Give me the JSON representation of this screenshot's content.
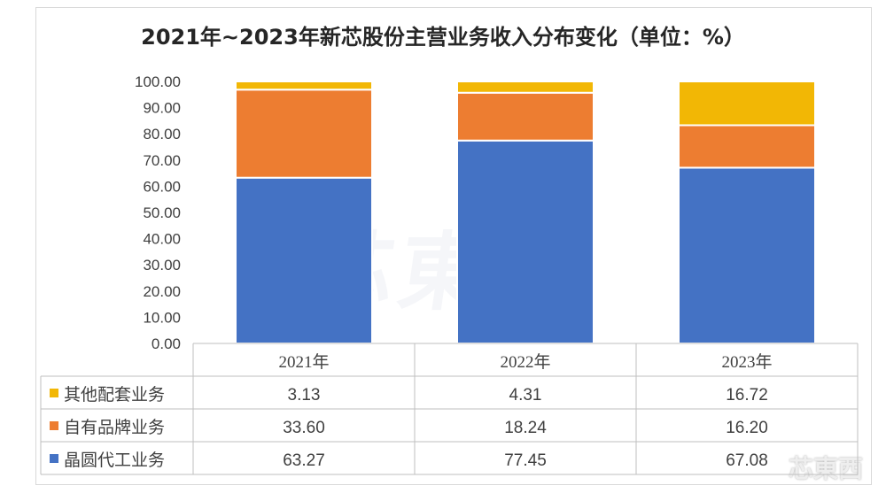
{
  "chart_data": {
    "type": "bar",
    "stacked": true,
    "title": "2021年~2023年新芯股份主营业务收入分布变化（单位：%）",
    "categories": [
      "2021年",
      "2022年",
      "2023年"
    ],
    "series": [
      {
        "name": "晶圆代工业务",
        "color": "#4472c4",
        "values": [
          63.27,
          77.45,
          67.08
        ]
      },
      {
        "name": "自有品牌业务",
        "color": "#ed7d31",
        "values": [
          33.6,
          18.24,
          16.2
        ]
      },
      {
        "name": "其他配套业务",
        "color": "#f2b705",
        "values": [
          3.13,
          4.31,
          16.72
        ]
      }
    ],
    "ylim": [
      0,
      100
    ],
    "yticks": [
      "0.00",
      "10.00",
      "20.00",
      "30.00",
      "40.00",
      "50.00",
      "60.00",
      "70.00",
      "80.00",
      "90.00",
      "100.00"
    ],
    "grid": false,
    "data_table": {
      "rows": [
        {
          "label": "其他配套业务",
          "color": "#f2b705",
          "cells": [
            "3.13",
            "4.31",
            "16.72"
          ]
        },
        {
          "label": "自有品牌业务",
          "color": "#ed7d31",
          "cells": [
            "33.60",
            "18.24",
            "16.20"
          ]
        },
        {
          "label": "晶圆代工业务",
          "color": "#4472c4",
          "cells": [
            "63.27",
            "77.45",
            "67.08"
          ]
        }
      ]
    }
  },
  "watermark": {
    "main": "芯東西",
    "corner": "芯東西"
  }
}
